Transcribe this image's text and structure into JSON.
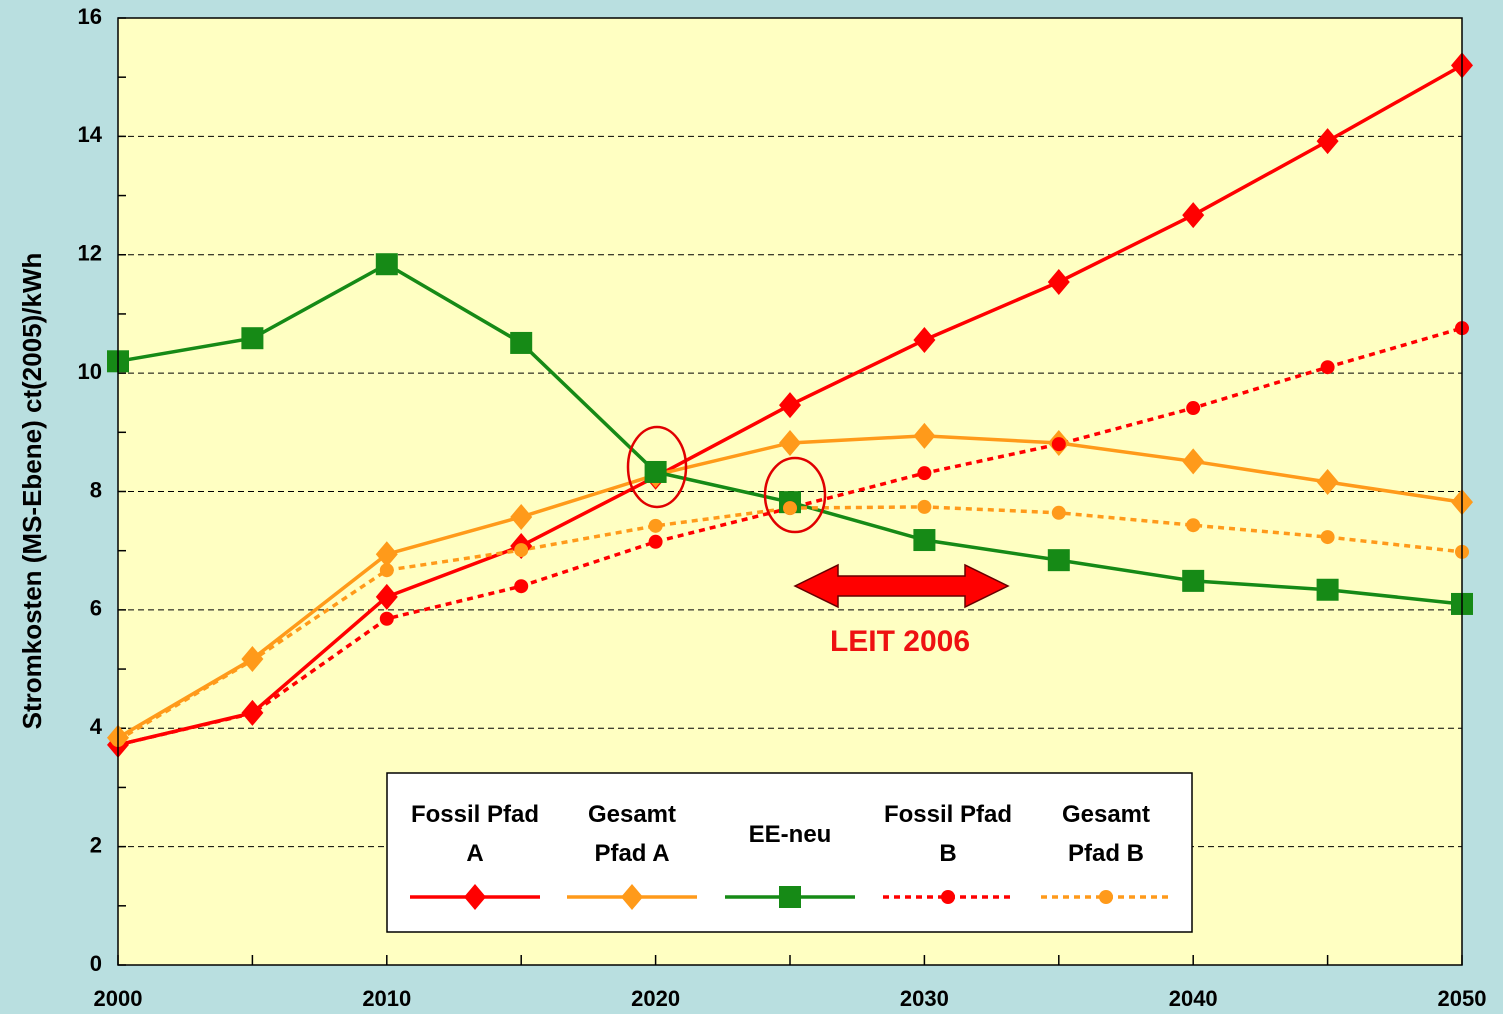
{
  "chart_data": {
    "type": "line",
    "y_label": "Stromkosten (MS-Ebene) ct(2005)/kWh",
    "annotation": "LEIT 2006",
    "x": [
      2000,
      2005,
      2010,
      2015,
      2020,
      2025,
      2030,
      2035,
      2040,
      2045,
      2050
    ],
    "xlim": [
      2000,
      2050
    ],
    "xticks": [
      2000,
      2010,
      2020,
      2030,
      2040,
      2050
    ],
    "ylim": [
      0,
      16
    ],
    "yticks": [
      0,
      2,
      4,
      6,
      8,
      10,
      12,
      14,
      16
    ],
    "grid": true,
    "series": [
      {
        "name": "Fossil Pfad A",
        "color": "#ff0000",
        "style": "solid",
        "marker": "diamond",
        "values": [
          3.72,
          4.26,
          6.22,
          7.08,
          8.25,
          9.46,
          10.56,
          11.54,
          12.67,
          13.92,
          15.2
        ]
      },
      {
        "name": "Gesamt Pfad A",
        "color": "#ff9a1a",
        "style": "solid",
        "marker": "diamond",
        "values": [
          3.84,
          5.17,
          6.94,
          7.57,
          8.28,
          8.82,
          8.94,
          8.82,
          8.51,
          8.16,
          7.82
        ]
      },
      {
        "name": "EE-neu",
        "color": "#168a16",
        "style": "solid",
        "marker": "square",
        "values": [
          10.2,
          10.59,
          11.84,
          10.51,
          8.33,
          7.82,
          7.18,
          6.84,
          6.49,
          6.34,
          6.1
        ]
      },
      {
        "name": "Fossil Pfad B",
        "color": "#ff0000",
        "style": "dotted",
        "marker": "circle",
        "values": [
          3.72,
          4.25,
          5.85,
          6.4,
          7.15,
          7.72,
          8.31,
          8.8,
          9.41,
          10.1,
          10.76
        ]
      },
      {
        "name": "Gesamt Pfad B",
        "color": "#ff9a1a",
        "style": "dotted",
        "marker": "circle",
        "values": [
          3.8,
          5.15,
          6.67,
          7.01,
          7.42,
          7.72,
          7.74,
          7.64,
          7.43,
          7.23,
          6.98
        ]
      }
    ]
  }
}
